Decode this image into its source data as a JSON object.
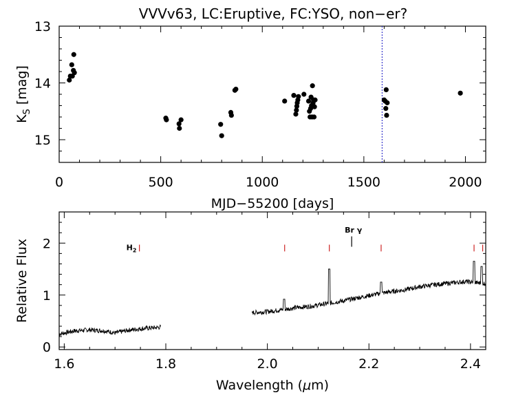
{
  "title": "VVVv63, LC:Eruptive, FC:YSO, non−er?",
  "chart_data": [
    {
      "type": "scatter",
      "title": "VVVv63, LC:Eruptive, FC:YSO, non−er?",
      "xlabel": "MJD−55200 [days]",
      "ylabel": "K_S [mag]",
      "ylabel_main": "K",
      "ylabel_sub": "S",
      "ylabel_unit": " [mag]",
      "xlim": [
        0,
        2100
      ],
      "ylim": [
        15.4,
        13.0
      ],
      "y_inverted": true,
      "xticks": [
        0,
        500,
        1000,
        1500,
        2000
      ],
      "yticks": [
        13,
        14,
        15
      ],
      "vline": {
        "x": 1590,
        "color": "#3333cc",
        "style": "dotted"
      },
      "points": [
        [
          50,
          13.95
        ],
        [
          55,
          13.88
        ],
        [
          62,
          13.68
        ],
        [
          65,
          13.88
        ],
        [
          70,
          13.78
        ],
        [
          72,
          13.5
        ],
        [
          75,
          13.82
        ],
        [
          525,
          14.62
        ],
        [
          528,
          14.65
        ],
        [
          590,
          14.72
        ],
        [
          592,
          14.8
        ],
        [
          600,
          14.65
        ],
        [
          795,
          14.73
        ],
        [
          800,
          14.93
        ],
        [
          845,
          14.52
        ],
        [
          848,
          14.57
        ],
        [
          865,
          14.13
        ],
        [
          870,
          14.11
        ],
        [
          1110,
          14.32
        ],
        [
          1155,
          14.22
        ],
        [
          1165,
          14.55
        ],
        [
          1168,
          14.48
        ],
        [
          1170,
          14.41
        ],
        [
          1172,
          14.35
        ],
        [
          1175,
          14.3
        ],
        [
          1178,
          14.24
        ],
        [
          1205,
          14.2
        ],
        [
          1228,
          14.32
        ],
        [
          1232,
          14.5
        ],
        [
          1235,
          14.6
        ],
        [
          1238,
          14.45
        ],
        [
          1240,
          14.25
        ],
        [
          1242,
          14.4
        ],
        [
          1245,
          14.6
        ],
        [
          1247,
          14.05
        ],
        [
          1250,
          14.35
        ],
        [
          1252,
          14.3
        ],
        [
          1255,
          14.6
        ],
        [
          1257,
          14.42
        ],
        [
          1260,
          14.3
        ],
        [
          1600,
          14.3
        ],
        [
          1605,
          14.32
        ],
        [
          1608,
          14.45
        ],
        [
          1610,
          14.12
        ],
        [
          1612,
          14.57
        ],
        [
          1615,
          14.35
        ],
        [
          1975,
          14.18
        ]
      ]
    },
    {
      "type": "line",
      "xlabel": "Wavelength (μm)",
      "xlabel_main": "Wavelength (",
      "xlabel_mu": "μ",
      "xlabel_end": "m)",
      "ylabel": "Relative Flux",
      "xlim": [
        1.59,
        2.43
      ],
      "ylim": [
        -0.05,
        2.6
      ],
      "xticks": [
        1.6,
        1.8,
        2.0,
        2.2,
        2.4
      ],
      "xtick_labels": [
        "1.6",
        "1.8",
        "2.0",
        "2.2",
        "2.4"
      ],
      "yticks": [
        0,
        1,
        2
      ],
      "segments": [
        {
          "x": [
            1.59,
            1.62,
            1.65,
            1.68,
            1.7,
            1.73,
            1.76,
            1.79
          ],
          "y": [
            0.25,
            0.31,
            0.33,
            0.31,
            0.27,
            0.33,
            0.36,
            0.38
          ]
        },
        {
          "x": [
            1.97,
            2.0,
            2.03,
            2.06,
            2.09,
            2.12,
            2.15,
            2.18,
            2.21,
            2.24,
            2.27,
            2.3,
            2.33,
            2.36,
            2.39,
            2.43
          ],
          "y": [
            0.66,
            0.68,
            0.72,
            0.76,
            0.79,
            0.84,
            0.89,
            0.95,
            1.01,
            1.06,
            1.1,
            1.16,
            1.2,
            1.23,
            1.26,
            1.22
          ]
        }
      ],
      "emission_spikes": [
        {
          "x": 2.033,
          "y": 0.92
        },
        {
          "x": 2.122,
          "y": 1.5
        },
        {
          "x": 2.224,
          "y": 1.25
        },
        {
          "x": 2.407,
          "y": 1.65
        },
        {
          "x": 2.422,
          "y": 1.55
        }
      ],
      "line_markers": [
        {
          "x": 1.748,
          "label": "H",
          "sub": "2",
          "color": "#cc2222"
        },
        {
          "x": 2.034,
          "label": "",
          "color": "#cc2222"
        },
        {
          "x": 2.122,
          "label": "",
          "color": "#cc2222"
        },
        {
          "x": 2.166,
          "label": "Br γ",
          "color": "#000000"
        },
        {
          "x": 2.224,
          "label": "",
          "color": "#cc2222"
        },
        {
          "x": 2.407,
          "label": "",
          "color": "#cc2222"
        },
        {
          "x": 2.424,
          "label": "",
          "color": "#cc2222"
        }
      ]
    }
  ]
}
